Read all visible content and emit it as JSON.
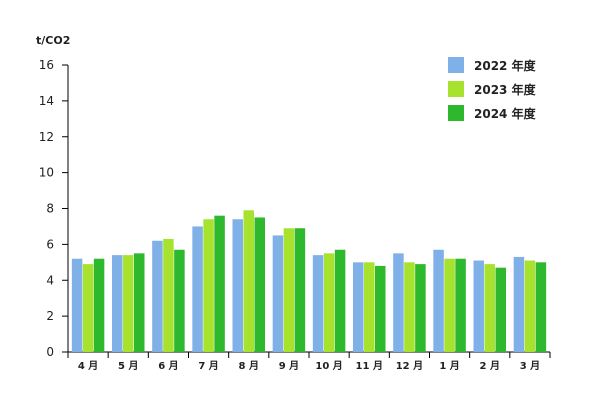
{
  "chart_data": {
    "type": "bar",
    "unit_label": "t/CO2",
    "categories": [
      "4 月",
      "5 月",
      "6 月",
      "7 月",
      "8 月",
      "9 月",
      "10 月",
      "11 月",
      "12 月",
      "1 月",
      "2 月",
      "3 月"
    ],
    "series": [
      {
        "name": "2022 年度",
        "color": "#7fb1e8",
        "values": [
          5.2,
          5.4,
          6.2,
          7.0,
          7.4,
          6.5,
          5.4,
          5.0,
          5.5,
          5.7,
          5.1,
          5.3
        ]
      },
      {
        "name": "2023 年度",
        "color": "#a6e22e",
        "values": [
          4.9,
          5.4,
          6.3,
          7.4,
          7.9,
          6.9,
          5.5,
          5.0,
          5.0,
          5.2,
          4.9,
          5.1
        ]
      },
      {
        "name": "2024 年度",
        "color": "#2eb82e",
        "values": [
          5.2,
          5.5,
          5.7,
          7.6,
          7.5,
          6.9,
          5.7,
          4.8,
          4.9,
          5.2,
          4.7,
          5.0
        ]
      }
    ],
    "ylim": [
      0,
      16
    ],
    "yticks": [
      0,
      2,
      4,
      6,
      8,
      10,
      12,
      14,
      16
    ],
    "grid": false,
    "legend_position": "top-right"
  }
}
